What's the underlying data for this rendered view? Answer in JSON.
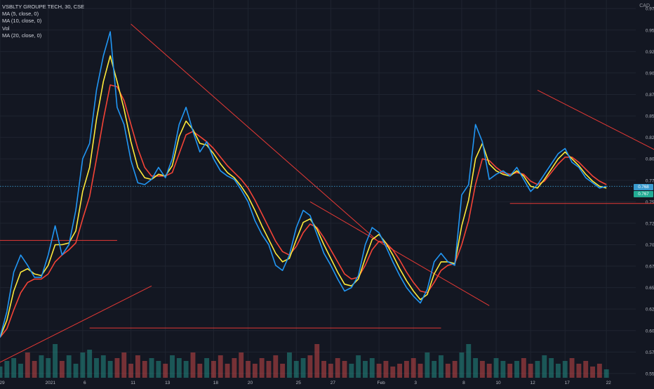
{
  "legend": {
    "title": "VSBLTY GROUPE TECH, 30, CSE",
    "studies": [
      "MA (5, close, 0)",
      "MA (10, close, 0)",
      "Vol",
      "MA (20, close, 0)"
    ]
  },
  "currency": "CAD",
  "price_tags": {
    "last": "0.768",
    "ma": "0.767"
  },
  "colors": {
    "background": "#131722",
    "grid": "#1f2430",
    "up": "#26a69a",
    "down": "#ef5350",
    "ma5": "#ffeb3b",
    "ma10": "#2196f3",
    "ma20": "#f44336",
    "trendline": "#e53935",
    "axis_text": "#b2b5be"
  },
  "chart_data": {
    "type": "line",
    "title": "VSBLTY GROUPE TECH, 30, CSE",
    "ylim": [
      0.545,
      0.985
    ],
    "y_ticks": [
      "0.975",
      "0.950",
      "0.925",
      "0.900",
      "0.875",
      "0.850",
      "0.825",
      "0.800",
      "0.775",
      "0.750",
      "0.725",
      "0.700",
      "0.675",
      "0.650",
      "0.625",
      "0.600",
      "0.575",
      "0.550"
    ],
    "x_ticks": [
      {
        "label": "29",
        "x": 0
      },
      {
        "label": "2021",
        "x": 7
      },
      {
        "label": "6",
        "x": 12
      },
      {
        "label": "11",
        "x": 19
      },
      {
        "label": "13",
        "x": 24
      },
      {
        "label": "18",
        "x": 31
      },
      {
        "label": "20",
        "x": 36
      },
      {
        "label": "25",
        "x": 43
      },
      {
        "label": "27",
        "x": 48
      },
      {
        "label": "Feb",
        "x": 55
      },
      {
        "label": "3",
        "x": 60
      },
      {
        "label": "8",
        "x": 67
      },
      {
        "label": "10",
        "x": 72
      },
      {
        "label": "12",
        "x": 77
      },
      {
        "label": "17",
        "x": 82
      },
      {
        "label": "22",
        "x": 88
      }
    ],
    "x_range": [
      0,
      89
    ],
    "volume_max": 15,
    "close_line_value": 0.768,
    "series": [
      {
        "color": "#2196f3",
        "values": [
          0.592,
          0.622,
          0.668,
          0.688,
          0.676,
          0.662,
          0.662,
          0.688,
          0.722,
          0.688,
          0.7,
          0.74,
          0.8,
          0.818,
          0.88,
          0.92,
          0.948,
          0.86,
          0.84,
          0.798,
          0.772,
          0.77,
          0.776,
          0.79,
          0.778,
          0.8,
          0.84,
          0.86,
          0.832,
          0.808,
          0.82,
          0.8,
          0.786,
          0.78,
          0.776,
          0.764,
          0.75,
          0.728,
          0.712,
          0.7,
          0.676,
          0.67,
          0.688,
          0.72,
          0.74,
          0.734,
          0.712,
          0.69,
          0.676,
          0.66,
          0.646,
          0.65,
          0.664,
          0.7,
          0.72,
          0.714,
          0.698,
          0.68,
          0.664,
          0.65,
          0.64,
          0.632,
          0.648,
          0.68,
          0.69,
          0.68,
          0.676,
          0.758,
          0.77,
          0.84,
          0.82,
          0.776,
          0.782,
          0.786,
          0.78,
          0.79,
          0.776,
          0.762,
          0.77,
          0.782,
          0.794,
          0.806,
          0.812,
          0.796,
          0.79,
          0.778,
          0.772,
          0.766,
          0.768
        ]
      },
      {
        "color": "#ffeb3b",
        "values": [
          0.592,
          0.612,
          0.646,
          0.668,
          0.672,
          0.666,
          0.664,
          0.676,
          0.7,
          0.7,
          0.702,
          0.716,
          0.762,
          0.79,
          0.846,
          0.89,
          0.92,
          0.89,
          0.858,
          0.82,
          0.79,
          0.778,
          0.776,
          0.782,
          0.78,
          0.792,
          0.826,
          0.844,
          0.834,
          0.818,
          0.816,
          0.806,
          0.794,
          0.784,
          0.778,
          0.768,
          0.756,
          0.74,
          0.722,
          0.706,
          0.69,
          0.68,
          0.684,
          0.706,
          0.726,
          0.73,
          0.718,
          0.7,
          0.684,
          0.668,
          0.654,
          0.652,
          0.66,
          0.684,
          0.706,
          0.712,
          0.702,
          0.688,
          0.672,
          0.658,
          0.646,
          0.636,
          0.642,
          0.666,
          0.68,
          0.68,
          0.678,
          0.722,
          0.752,
          0.8,
          0.818,
          0.794,
          0.786,
          0.782,
          0.78,
          0.786,
          0.78,
          0.768,
          0.766,
          0.776,
          0.788,
          0.8,
          0.808,
          0.8,
          0.792,
          0.782,
          0.774,
          0.768,
          0.766
        ]
      },
      {
        "color": "#f44336",
        "values": [
          0.592,
          0.602,
          0.624,
          0.644,
          0.656,
          0.66,
          0.66,
          0.666,
          0.68,
          0.688,
          0.694,
          0.702,
          0.73,
          0.756,
          0.8,
          0.846,
          0.886,
          0.884,
          0.868,
          0.84,
          0.812,
          0.79,
          0.78,
          0.78,
          0.78,
          0.784,
          0.806,
          0.828,
          0.832,
          0.826,
          0.82,
          0.812,
          0.802,
          0.792,
          0.784,
          0.776,
          0.766,
          0.752,
          0.736,
          0.72,
          0.704,
          0.692,
          0.688,
          0.698,
          0.714,
          0.724,
          0.72,
          0.708,
          0.694,
          0.68,
          0.666,
          0.66,
          0.662,
          0.676,
          0.694,
          0.704,
          0.702,
          0.694,
          0.682,
          0.668,
          0.656,
          0.646,
          0.644,
          0.656,
          0.67,
          0.676,
          0.678,
          0.7,
          0.728,
          0.77,
          0.8,
          0.798,
          0.79,
          0.784,
          0.782,
          0.784,
          0.782,
          0.774,
          0.77,
          0.774,
          0.784,
          0.794,
          0.802,
          0.802,
          0.796,
          0.788,
          0.78,
          0.774,
          0.77
        ]
      }
    ],
    "volume": [
      4,
      6,
      7,
      5,
      9,
      6,
      8,
      7,
      12,
      6,
      8,
      5,
      9,
      10,
      7,
      8,
      6,
      7,
      9,
      5,
      8,
      6,
      7,
      6,
      5,
      8,
      7,
      6,
      9,
      5,
      7,
      6,
      8,
      5,
      7,
      9,
      6,
      5,
      7,
      6,
      8,
      5,
      9,
      6,
      7,
      8,
      12,
      6,
      5,
      7,
      6,
      5,
      8,
      6,
      7,
      5,
      6,
      4,
      5,
      6,
      7,
      5,
      9,
      6,
      8,
      5,
      6,
      9,
      12,
      7,
      6,
      5,
      7,
      6,
      5,
      6,
      7,
      5,
      6,
      8,
      7,
      5,
      6,
      7,
      5,
      6,
      4,
      5,
      3
    ],
    "annotations": [
      {
        "type": "trendline",
        "p1": [
          19,
          0.957
        ],
        "p2": [
          55,
          0.703
        ]
      },
      {
        "type": "trendline",
        "p1": [
          45,
          0.75
        ],
        "p2": [
          71,
          0.629
        ]
      },
      {
        "type": "trendline",
        "p1": [
          0,
          0.563
        ],
        "p2": [
          22,
          0.652
        ]
      },
      {
        "type": "trendline",
        "p1": [
          78,
          0.88
        ],
        "p2": [
          101,
          0.786
        ]
      },
      {
        "type": "hline",
        "x1": 0,
        "x2": 17,
        "y": 0.705
      },
      {
        "type": "hline",
        "x1": 13,
        "x2": 64,
        "y": 0.603
      },
      {
        "type": "hline",
        "x1": 74,
        "x2": 101,
        "y": 0.748
      }
    ]
  }
}
